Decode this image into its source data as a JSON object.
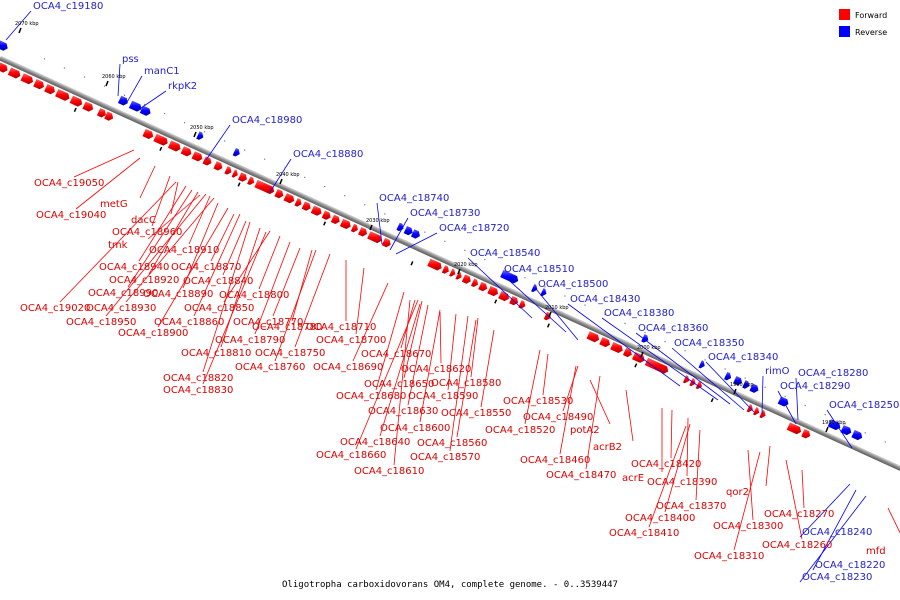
{
  "caption": "Oligotropha carboxidovorans OM4, complete genome. - 0..3539447",
  "legend": [
    {
      "label": "Forward",
      "color": "#ff0000"
    },
    {
      "label": "Reverse",
      "color": "#0000ff"
    }
  ],
  "colors": {
    "forward": "#ff0000",
    "forward_label": "#dd0000",
    "reverse": "#0000ff",
    "reverse_label": "#2222cc",
    "axis": "#999999"
  },
  "kbp_ticks": [
    "2070 kbp",
    "2060 kbp",
    "2050 kbp",
    "2040 kbp",
    "2030 kbp",
    "2020 kbp",
    "2010 kbp",
    "2000 kbp",
    "1990 kbp",
    "1980 kbp"
  ],
  "forward_labels": [
    "OCA4_c19050",
    "metG",
    "OCA4_c19040",
    "dacC",
    "OCA4_c18960",
    "tmk",
    "OCA4_c18910",
    "OCA4_c18940",
    "OCA4_c18870",
    "OCA4_c18920",
    "OCA4_c18840",
    "OCA4_c18990",
    "OCA4_c18890",
    "OCA4_c18800",
    "OCA4_c19020",
    "OCA4_c18930",
    "OCA4_c18850",
    "OCA4_c18950",
    "OCA4_c18860",
    "OCA4_c18770",
    "OCA4_c18900",
    "OCA4_c18780",
    "OCA4_c18710",
    "OCA4_c18790",
    "OCA4_c18700",
    "OCA4_c18810",
    "OCA4_c18750",
    "OCA4_c18670",
    "OCA4_c18760",
    "OCA4_c18690",
    "OCA4_c18620",
    "OCA4_c18820",
    "OCA4_c18650",
    "OCA4_c18580",
    "OCA4_c18830",
    "OCA4_c18680",
    "OCA4_c18590",
    "OCA4_c18530",
    "OCA4_c18630",
    "OCA4_c18550",
    "OCA4_c18490",
    "OCA4_c18600",
    "OCA4_c18520",
    "potA2",
    "OCA4_c18640",
    "OCA4_c18560",
    "acrB2",
    "OCA4_c18660",
    "OCA4_c18570",
    "OCA4_c18460",
    "OCA4_c18420",
    "OCA4_c18610",
    "OCA4_c18470",
    "acrE",
    "OCA4_c18390",
    "qor2",
    "OCA4_c18370",
    "OCA4_c18270",
    "OCA4_c18400",
    "OCA4_c18300",
    "OCA4_c18410",
    "OCA4_c18260",
    "mfd",
    "OCA4_c18310"
  ],
  "reverse_labels": [
    "OCA4_c19180",
    "pss",
    "manC1",
    "rkpK2",
    "OCA4_c18980",
    "OCA4_c18880",
    "OCA4_c18740",
    "OCA4_c18730",
    "OCA4_c18720",
    "OCA4_c18540",
    "OCA4_c18510",
    "OCA4_c18500",
    "OCA4_c18430",
    "OCA4_c18380",
    "OCA4_c18360",
    "OCA4_c18350",
    "OCA4_c18340",
    "rimO",
    "OCA4_c18280",
    "OCA4_c18290",
    "OCA4_c18250",
    "OCA4_c18240",
    "OCA4_c18220",
    "OCA4_c18230"
  ]
}
